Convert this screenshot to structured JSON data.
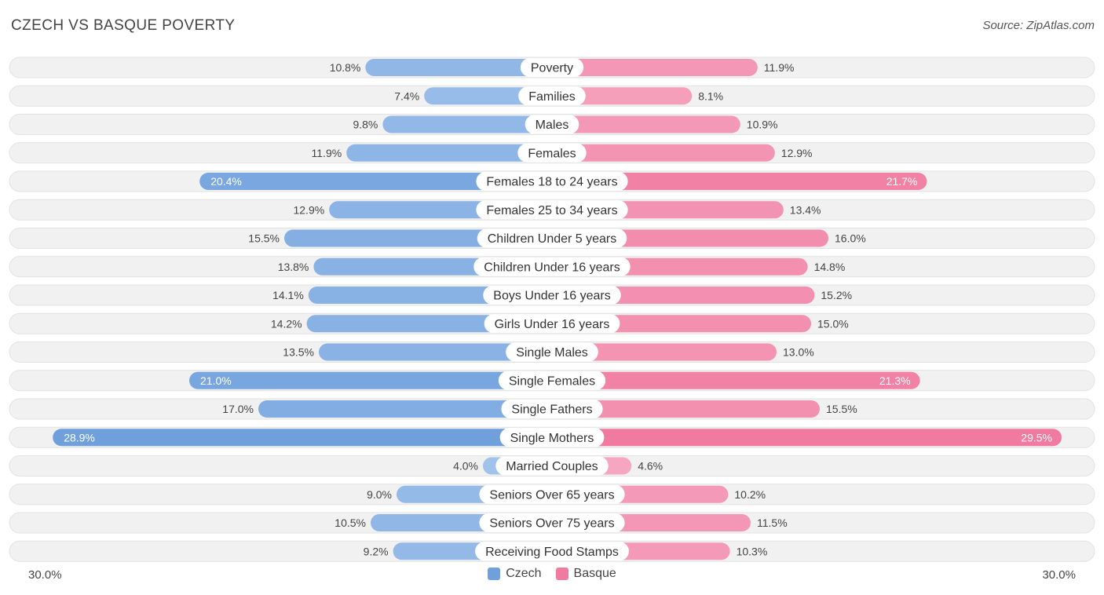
{
  "header": {
    "title": "CZECH VS BASQUE POVERTY",
    "source": "Source: ZipAtlas.com"
  },
  "legend": {
    "czech_label": "Czech",
    "basque_label": "Basque"
  },
  "axis": {
    "left_label": "30.0%",
    "right_label": "30.0%"
  },
  "colors": {
    "czech": "#6fa0dc",
    "czech_light": "#a9c8ee",
    "basque": "#f07aa0",
    "basque_light": "#f7b0c8",
    "row_bg": "#f1f1f1"
  },
  "chart_data": {
    "type": "bar",
    "orientation": "horizontal-diverging",
    "title": "CZECH VS BASQUE POVERTY",
    "xlim": [
      -30,
      30
    ],
    "series": [
      {
        "name": "Czech",
        "values": [
          10.8,
          7.4,
          9.8,
          11.9,
          20.4,
          12.9,
          15.5,
          13.8,
          14.1,
          14.2,
          13.5,
          21.0,
          17.0,
          28.9,
          4.0,
          9.0,
          10.5,
          9.2
        ]
      },
      {
        "name": "Basque",
        "values": [
          11.9,
          8.1,
          10.9,
          12.9,
          21.7,
          13.4,
          16.0,
          14.8,
          15.2,
          15.0,
          13.0,
          21.3,
          15.5,
          29.5,
          4.6,
          10.2,
          11.5,
          10.3
        ]
      }
    ],
    "categories": [
      "Poverty",
      "Families",
      "Males",
      "Females",
      "Females 18 to 24 years",
      "Females 25 to 34 years",
      "Children Under 5 years",
      "Children Under 16 years",
      "Boys Under 16 years",
      "Girls Under 16 years",
      "Single Males",
      "Single Females",
      "Single Fathers",
      "Single Mothers",
      "Married Couples",
      "Seniors Over 65 years",
      "Seniors Over 75 years",
      "Receiving Food Stamps"
    ],
    "czech_labels": [
      "10.8%",
      "7.4%",
      "9.8%",
      "11.9%",
      "20.4%",
      "12.9%",
      "15.5%",
      "13.8%",
      "14.1%",
      "14.2%",
      "13.5%",
      "21.0%",
      "17.0%",
      "28.9%",
      "4.0%",
      "9.0%",
      "10.5%",
      "9.2%"
    ],
    "basque_labels": [
      "11.9%",
      "8.1%",
      "10.9%",
      "12.9%",
      "21.7%",
      "13.4%",
      "16.0%",
      "14.8%",
      "15.2%",
      "15.0%",
      "13.0%",
      "21.3%",
      "15.5%",
      "29.5%",
      "4.6%",
      "10.2%",
      "11.5%",
      "10.3%"
    ]
  }
}
